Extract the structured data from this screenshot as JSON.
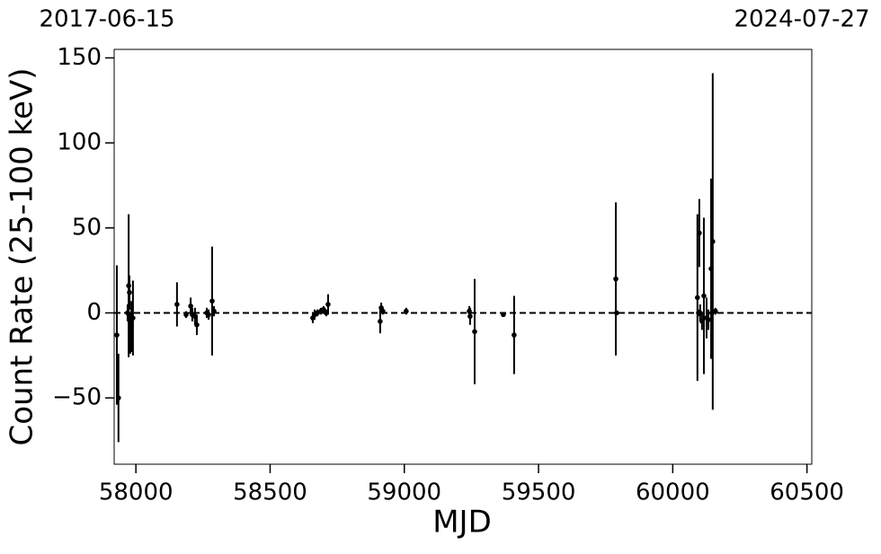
{
  "chart_data": {
    "type": "scatter",
    "date_labels": [
      "2017-06-15",
      "2024-07-27"
    ],
    "x_label": "MJD",
    "y_label": "Count Rate (25-100 keV)",
    "xlim": [
      57919,
      60518
    ],
    "ylim": [
      -89,
      155
    ],
    "xticks": [
      58000,
      58500,
      59000,
      59500,
      60000,
      60500
    ],
    "yticks": [
      {
        "value": -50,
        "label": "−50"
      },
      0,
      50,
      100,
      150
    ],
    "hline": 0,
    "color": "#000000",
    "series": [
      {
        "x": [
          57929,
          57935,
          57969,
          57973,
          57976,
          57979,
          57983,
          57989,
          58153,
          58187,
          58204,
          58210,
          58220,
          58227,
          58264,
          58271,
          58284,
          58291,
          58659,
          58666,
          58676,
          58689,
          58699,
          58709,
          58716,
          58910,
          58914,
          58920,
          59007,
          59242,
          59245,
          59262,
          59369,
          59409,
          59788,
          59791,
          60092,
          60096,
          60099,
          60102,
          60109,
          60116,
          60126,
          60133,
          60143,
          60146,
          60149,
          60159
        ],
        "values": [
          -13,
          -50,
          0,
          16,
          12,
          -12,
          -8,
          -3,
          5,
          -1,
          4,
          -1,
          -2,
          -7,
          0,
          -1,
          7,
          1,
          -3,
          -1,
          0,
          1,
          2,
          0,
          5,
          -5,
          3,
          1,
          1,
          1,
          -2,
          -11,
          -1,
          -13,
          20,
          0,
          9,
          0,
          47,
          0,
          -5,
          10,
          -3,
          -4,
          26,
          0,
          42,
          1
        ],
        "errors": [
          41,
          26,
          5,
          42,
          10,
          12,
          15,
          22,
          13,
          2,
          5,
          4,
          5,
          6,
          3,
          3,
          32,
          3,
          3,
          3,
          2,
          2,
          2,
          2,
          6,
          7,
          3,
          2,
          2,
          3,
          5,
          31,
          1,
          23,
          45,
          1,
          49,
          2,
          20,
          5,
          5,
          46,
          12,
          6,
          53,
          3,
          99,
          2
        ]
      }
    ]
  }
}
